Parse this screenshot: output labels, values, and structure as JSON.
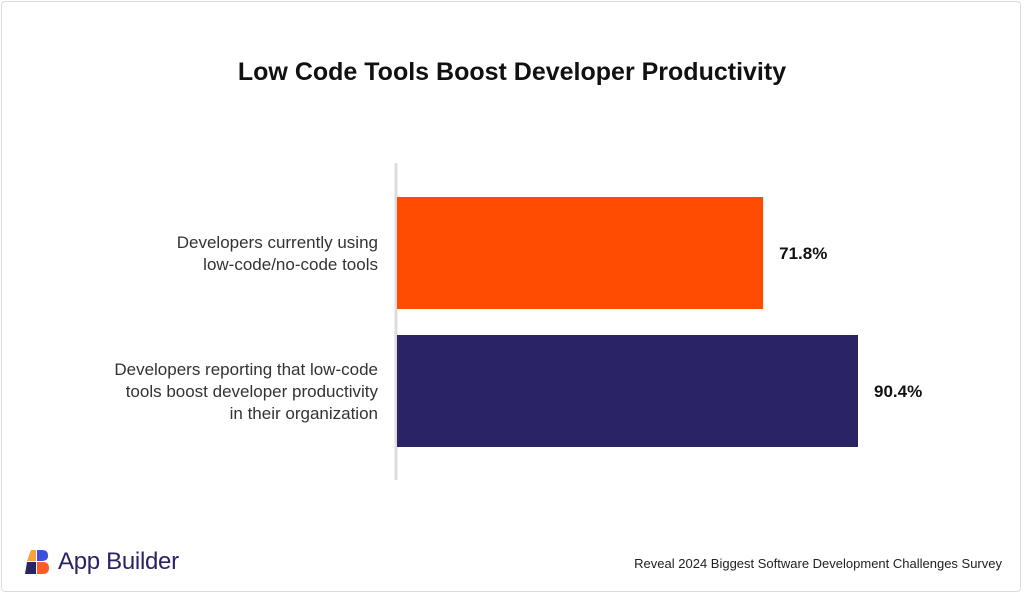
{
  "title": "Low Code Tools Boost Developer Productivity",
  "chart_data": {
    "type": "bar",
    "orientation": "horizontal",
    "title": "Low Code Tools Boost Developer Productivity",
    "categories": [
      [
        "Developers currently using",
        "low-code/no-code tools"
      ],
      [
        "Developers reporting that low-code",
        "tools boost developer productivity",
        "in their organization"
      ]
    ],
    "values": [
      71.8,
      90.4
    ],
    "value_labels": [
      "71.8%",
      "90.4%"
    ],
    "colors": [
      "#ff4c00",
      "#2a2464"
    ],
    "xlim": [
      0,
      90.4
    ],
    "grid": false
  },
  "footer": {
    "logo_text": "App Builder",
    "source": "Reveal 2024 Biggest Software Development Challenges Survey"
  }
}
